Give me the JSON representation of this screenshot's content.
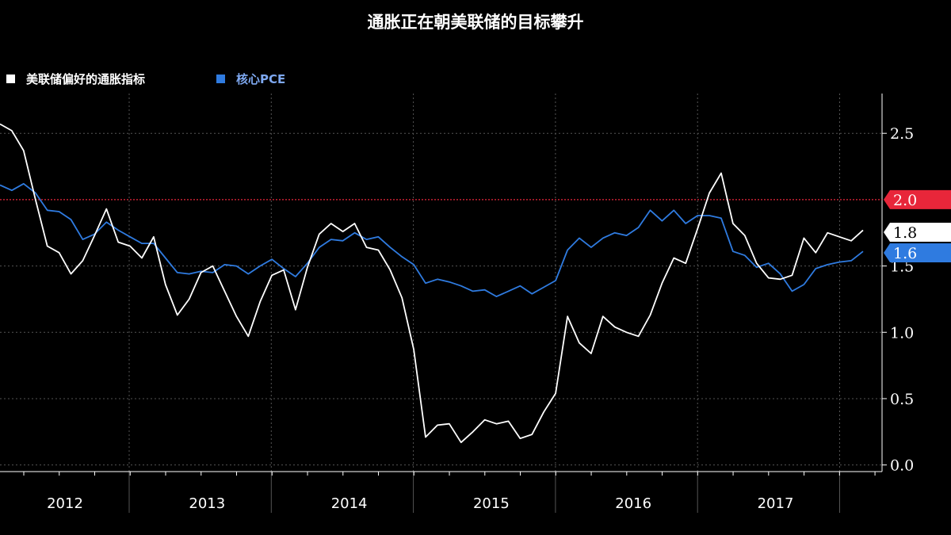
{
  "chart_data": {
    "type": "line",
    "title": "通胀正在朝美联储的目标攀升",
    "series": [
      {
        "name": "美联储偏好的通胀指标",
        "color": "#ffffff",
        "last_label": "1.8",
        "values": [
          2.57,
          2.52,
          2.37,
          2.0,
          1.65,
          1.6,
          1.44,
          1.54,
          1.73,
          1.93,
          1.68,
          1.65,
          1.56,
          1.72,
          1.36,
          1.13,
          1.25,
          1.45,
          1.5,
          1.31,
          1.12,
          0.97,
          1.23,
          1.43,
          1.47,
          1.17,
          1.49,
          1.74,
          1.82,
          1.76,
          1.82,
          1.64,
          1.62,
          1.47,
          1.26,
          0.87,
          0.21,
          0.3,
          0.31,
          0.17,
          0.25,
          0.34,
          0.31,
          0.33,
          0.2,
          0.23,
          0.4,
          0.54,
          1.12,
          0.92,
          0.84,
          1.12,
          1.04,
          1.0,
          0.97,
          1.13,
          1.37,
          1.56,
          1.52,
          1.78,
          2.05,
          2.2,
          1.82,
          1.73,
          1.52,
          1.41,
          1.4,
          1.43,
          1.71,
          1.6,
          1.75,
          1.72,
          1.69,
          1.77
        ]
      },
      {
        "name": "核心PCE",
        "color": "#2f7be0",
        "last_label": "1.6",
        "values": [
          2.11,
          2.07,
          2.12,
          2.05,
          1.92,
          1.91,
          1.85,
          1.7,
          1.74,
          1.83,
          1.77,
          1.72,
          1.67,
          1.67,
          1.56,
          1.45,
          1.44,
          1.46,
          1.45,
          1.51,
          1.5,
          1.44,
          1.5,
          1.55,
          1.48,
          1.42,
          1.52,
          1.64,
          1.7,
          1.69,
          1.75,
          1.7,
          1.72,
          1.64,
          1.57,
          1.51,
          1.37,
          1.4,
          1.38,
          1.35,
          1.31,
          1.32,
          1.27,
          1.31,
          1.35,
          1.29,
          1.34,
          1.39,
          1.62,
          1.71,
          1.64,
          1.71,
          1.75,
          1.73,
          1.79,
          1.92,
          1.84,
          1.92,
          1.82,
          1.88,
          1.88,
          1.86,
          1.61,
          1.58,
          1.49,
          1.52,
          1.44,
          1.31,
          1.36,
          1.48,
          1.51,
          1.53,
          1.54,
          1.61
        ]
      }
    ],
    "target": {
      "value": 2.0,
      "label": "2.0",
      "color": "#e8263a"
    },
    "ylim": [
      -0.05,
      2.8
    ],
    "yticks": [
      {
        "value": 0.0,
        "label": "0.0"
      },
      {
        "value": 0.5,
        "label": "0.5"
      },
      {
        "value": 1.0,
        "label": "1.0"
      },
      {
        "value": 1.5,
        "label": "1.5"
      },
      {
        "value": 2.5,
        "label": "2.5"
      }
    ],
    "years": [
      "2012",
      "2013",
      "2014",
      "2015",
      "2016",
      "2017"
    ],
    "months_per_year": 12,
    "grid": true,
    "legend": "top-left"
  },
  "legend_items": [
    {
      "label": "美联储偏好的通胀指标",
      "color": "#ffffff"
    },
    {
      "label": "核心PCE",
      "color": "#2f7be0",
      "text_color": "#7ea8f0"
    }
  ]
}
